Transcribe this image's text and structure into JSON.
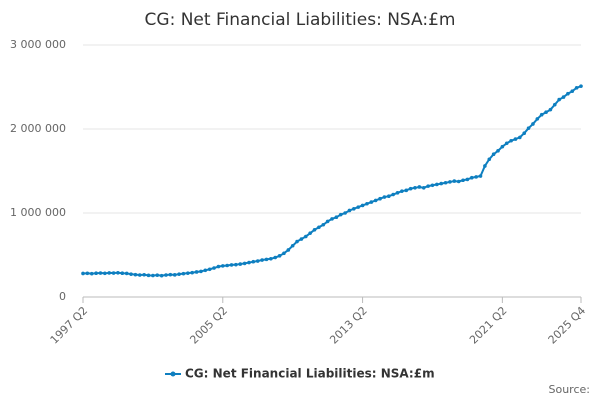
{
  "chart_data": {
    "type": "line",
    "title": "CG: Net Financial Liabilities: NSA:£m",
    "categories": [
      "1997 Q2",
      null,
      null,
      null,
      null,
      null,
      null,
      null,
      null,
      null,
      null,
      null,
      null,
      null,
      null,
      null,
      null,
      null,
      null,
      null,
      null,
      null,
      null,
      null,
      null,
      null,
      null,
      null,
      null,
      null,
      null,
      null,
      "2005 Q2",
      null,
      null,
      null,
      null,
      null,
      null,
      null,
      null,
      null,
      null,
      null,
      null,
      null,
      null,
      null,
      null,
      null,
      null,
      null,
      null,
      null,
      null,
      null,
      null,
      null,
      null,
      null,
      null,
      null,
      null,
      null,
      "2013 Q2",
      null,
      null,
      null,
      null,
      null,
      null,
      null,
      null,
      null,
      null,
      null,
      null,
      null,
      null,
      null,
      null,
      null,
      null,
      null,
      null,
      null,
      null,
      null,
      null,
      null,
      null,
      null,
      null,
      null,
      null,
      null,
      "2021 Q2",
      null,
      null,
      null,
      null,
      null,
      null,
      null,
      null,
      null,
      null,
      null,
      null,
      null,
      null,
      null,
      null,
      null,
      "2025 Q4"
    ],
    "series": [
      {
        "name": "CG: Net Financial Liabilities: NSA:£m",
        "color": "#0e7fc0",
        "values": [
          280000,
          282000,
          278000,
          283000,
          285000,
          282000,
          287000,
          285000,
          288000,
          283000,
          281000,
          272000,
          266000,
          262000,
          265000,
          258000,
          256000,
          260000,
          254000,
          262000,
          266000,
          264000,
          272000,
          278000,
          284000,
          290000,
          298000,
          305000,
          318000,
          330000,
          345000,
          362000,
          370000,
          375000,
          382000,
          385000,
          392000,
          400000,
          410000,
          420000,
          428000,
          440000,
          448000,
          455000,
          470000,
          490000,
          520000,
          560000,
          610000,
          660000,
          690000,
          720000,
          760000,
          800000,
          830000,
          860000,
          900000,
          930000,
          950000,
          980000,
          1000000,
          1030000,
          1050000,
          1070000,
          1090000,
          1110000,
          1130000,
          1150000,
          1170000,
          1190000,
          1200000,
          1220000,
          1240000,
          1260000,
          1270000,
          1290000,
          1300000,
          1310000,
          1300000,
          1320000,
          1330000,
          1340000,
          1350000,
          1360000,
          1370000,
          1380000,
          1375000,
          1390000,
          1400000,
          1420000,
          1430000,
          1440000,
          1560000,
          1640000,
          1700000,
          1740000,
          1790000,
          1830000,
          1860000,
          1880000,
          1900000,
          1950000,
          2010000,
          2060000,
          2120000,
          2170000,
          2200000,
          2230000,
          2290000,
          2350000,
          2380000,
          2420000,
          2450000,
          2490000,
          2510000
        ]
      }
    ],
    "ylim": [
      0,
      3000000
    ],
    "yticks": [
      0,
      {
        "value": 1000000,
        "label": "1 000 000"
      },
      {
        "value": 2000000,
        "label": "2 000 000"
      },
      {
        "value": 3000000,
        "label": "3 000 000"
      }
    ],
    "grid": true,
    "legend": "bottom",
    "source": "Source:"
  }
}
